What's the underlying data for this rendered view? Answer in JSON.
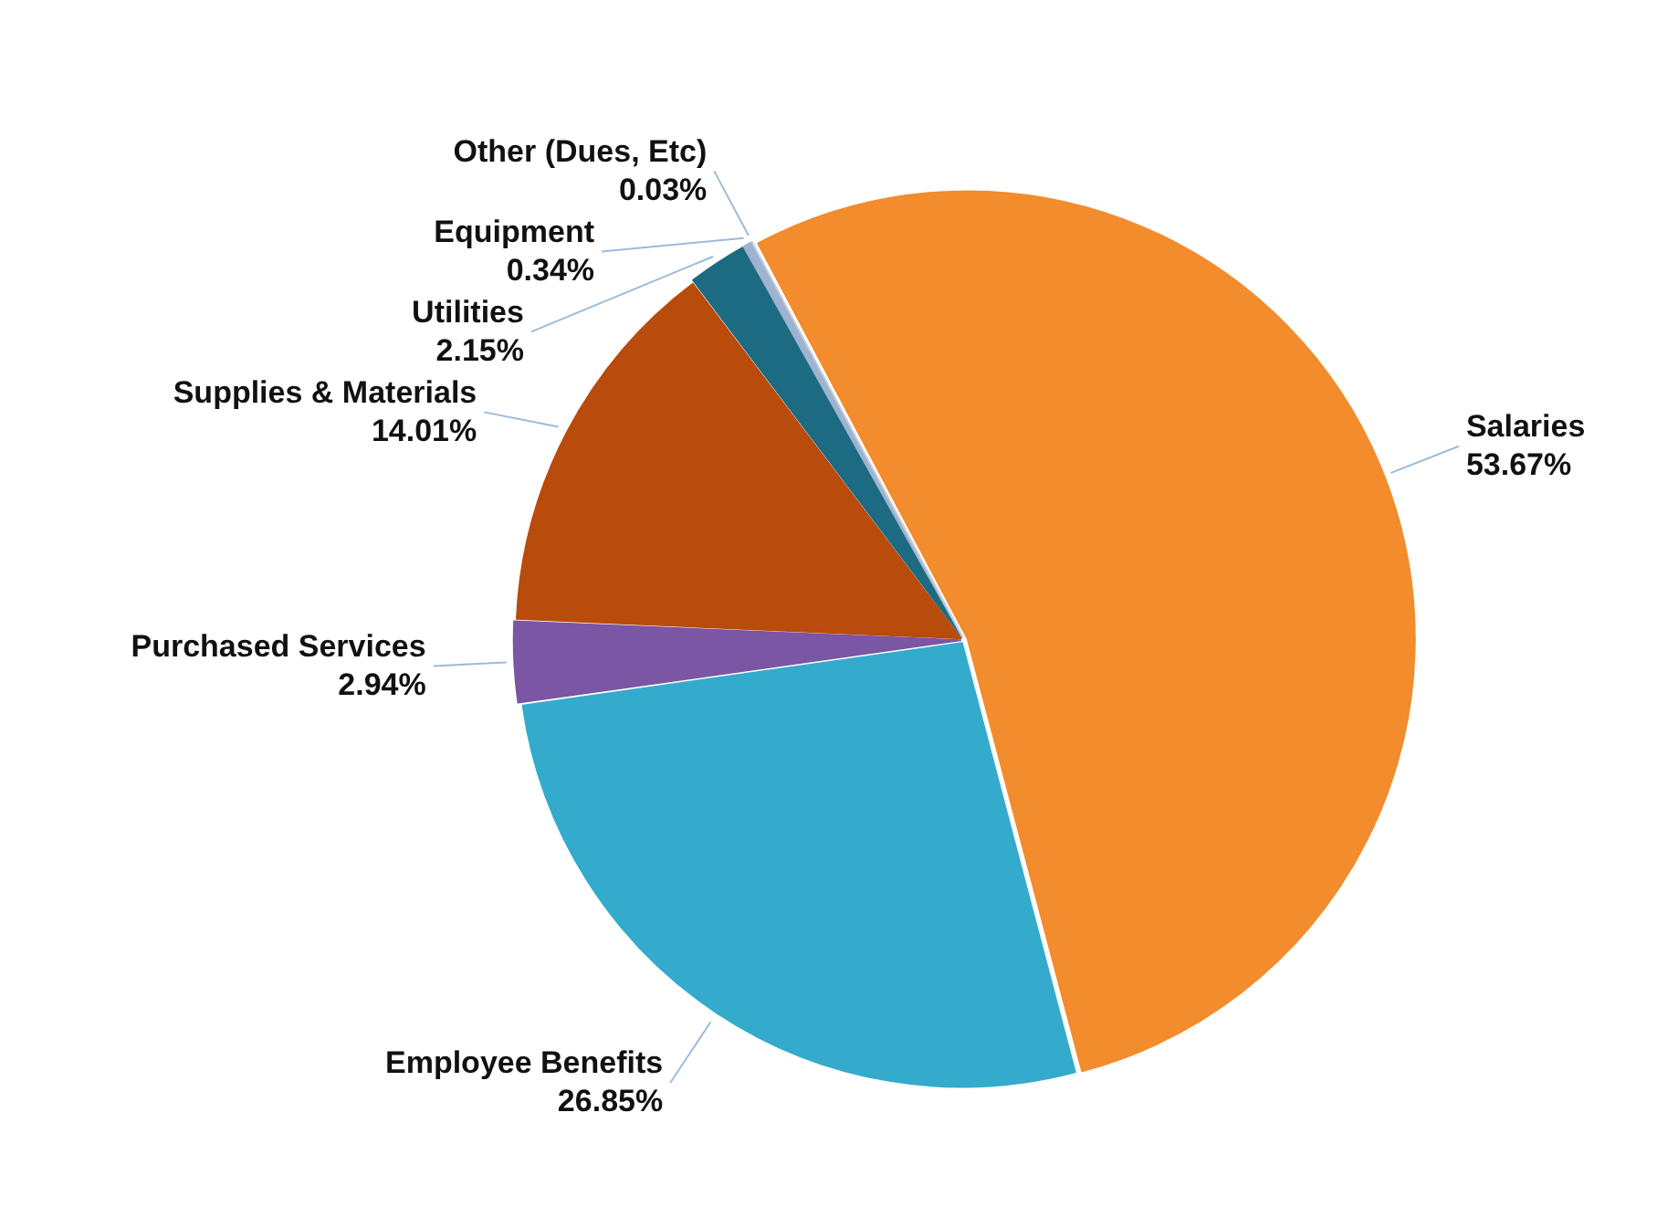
{
  "chart_data": {
    "type": "pie",
    "categories": [
      "Salaries",
      "Employee Benefits",
      "Purchased Services",
      "Supplies & Materials",
      "Utilities",
      "Equipment",
      "Other (Dues, Etc)"
    ],
    "values": [
      53.67,
      26.85,
      2.94,
      14.01,
      2.15,
      0.34,
      0.03
    ],
    "value_labels": [
      "53.67%",
      "26.85%",
      "2.94%",
      "14.01%",
      "2.15%",
      "0.34%",
      "0.03%"
    ],
    "colors": [
      "#f28c2c",
      "#34abcc",
      "#7a56a4",
      "#b94b0c",
      "#1c6b82",
      "#9db3cf",
      "#c9cfd8"
    ],
    "legend": false
  }
}
